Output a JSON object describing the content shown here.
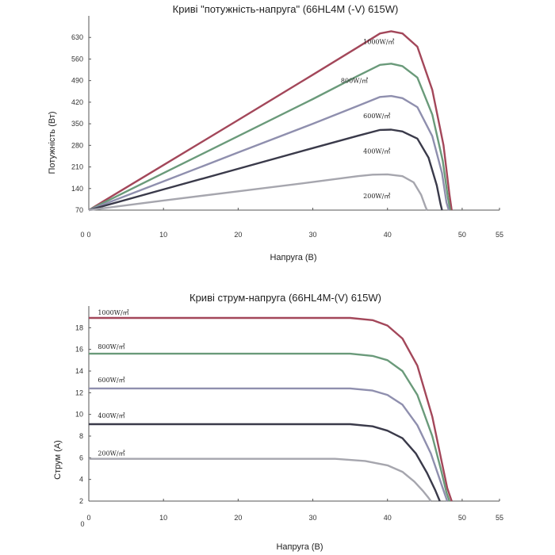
{
  "charts": [
    {
      "type": "line",
      "title": "Криві \"потужність-напруга\" (66HL4M (-V) 615W)",
      "xlabel": "Напруга (В)",
      "ylabel": "Потужність (Вт)",
      "x_origin_label": "0",
      "xticks": [
        "0",
        "10",
        "20",
        "30",
        "40",
        "50",
        "55"
      ],
      "xtick_values": [
        0,
        10,
        20,
        30,
        40,
        50,
        55
      ],
      "yticks": [
        "70",
        "140",
        "210",
        "280",
        "350",
        "420",
        "490",
        "560",
        "630"
      ],
      "ytick_values": [
        70,
        140,
        210,
        280,
        350,
        420,
        490,
        560,
        630
      ],
      "xlim": [
        0,
        55
      ],
      "ylim": [
        70,
        700
      ],
      "grid": false,
      "series": [
        {
          "name": "1000W/㎡",
          "color": "#a3475a",
          "points": [
            [
              0,
              70
            ],
            [
              10,
              216
            ],
            [
              20,
              362
            ],
            [
              30,
              509
            ],
            [
              36,
              598
            ],
            [
              39,
              643
            ],
            [
              40.5,
              650
            ],
            [
              42,
              643
            ],
            [
              44,
              600
            ],
            [
              46,
              460
            ],
            [
              47.5,
              280
            ],
            [
              48.3,
              120
            ],
            [
              48.6,
              70
            ]
          ]
        },
        {
          "name": "800W/㎡",
          "color": "#6a9a7a",
          "points": [
            [
              0,
              70
            ],
            [
              10,
              190
            ],
            [
              20,
              310
            ],
            [
              30,
              430
            ],
            [
              36,
              505
            ],
            [
              39,
              541
            ],
            [
              40.5,
              545
            ],
            [
              42,
              537
            ],
            [
              44,
              500
            ],
            [
              46,
              380
            ],
            [
              47.4,
              230
            ],
            [
              48.1,
              110
            ],
            [
              48.4,
              70
            ]
          ]
        },
        {
          "name": "600W/㎡",
          "color": "#8f8fae",
          "points": [
            [
              0,
              70
            ],
            [
              10,
              163
            ],
            [
              20,
              257
            ],
            [
              30,
              350
            ],
            [
              36,
              408
            ],
            [
              39,
              437
            ],
            [
              40.5,
              440
            ],
            [
              42,
              433
            ],
            [
              44,
              404
            ],
            [
              46,
              310
            ],
            [
              47.3,
              190
            ],
            [
              47.9,
              95
            ],
            [
              48.2,
              70
            ]
          ]
        },
        {
          "name": "400W/㎡",
          "color": "#3a3a4a",
          "points": [
            [
              0,
              70
            ],
            [
              10,
              137
            ],
            [
              20,
              204
            ],
            [
              30,
              271
            ],
            [
              36,
              311
            ],
            [
              39,
              330
            ],
            [
              40.5,
              331
            ],
            [
              42,
              325
            ],
            [
              44,
              302
            ],
            [
              45.5,
              240
            ],
            [
              46.6,
              150
            ],
            [
              47.1,
              90
            ],
            [
              47.3,
              70
            ]
          ]
        },
        {
          "name": "200W/㎡",
          "color": "#a6a6ae",
          "points": [
            [
              0,
              70
            ],
            [
              10,
              101
            ],
            [
              20,
              131
            ],
            [
              30,
              161
            ],
            [
              36,
              180
            ],
            [
              38,
              185
            ],
            [
              40,
              186
            ],
            [
              42,
              180
            ],
            [
              43.5,
              160
            ],
            [
              44.5,
              120
            ],
            [
              45.1,
              80
            ],
            [
              45.3,
              70
            ]
          ]
        }
      ]
    },
    {
      "type": "line",
      "title": "Криві струм-напруга (66HL4M-(V) 615W)",
      "xlabel": "Напруга (В)",
      "ylabel": "Струм (А)",
      "x_origin_label": "0",
      "xticks": [
        "0",
        "10",
        "20",
        "30",
        "40",
        "50",
        "55"
      ],
      "xtick_values": [
        0,
        10,
        20,
        30,
        40,
        50,
        55
      ],
      "yticks": [
        "2",
        "4",
        "6",
        "8",
        "10",
        "12",
        "14",
        "16",
        "18"
      ],
      "ytick_values": [
        2,
        4,
        6,
        8,
        10,
        12,
        14,
        16,
        18
      ],
      "xlim": [
        0,
        55
      ],
      "ylim": [
        2,
        20
      ],
      "grid": false,
      "series": [
        {
          "name": "1000W/㎡",
          "color": "#a3475a",
          "points": [
            [
              0,
              18.9
            ],
            [
              35,
              18.9
            ],
            [
              38,
              18.7
            ],
            [
              40,
              18.2
            ],
            [
              42,
              17.0
            ],
            [
              44,
              14.5
            ],
            [
              46,
              9.8
            ],
            [
              47.3,
              5.5
            ],
            [
              48,
              3.2
            ],
            [
              48.6,
              2
            ]
          ]
        },
        {
          "name": "800W/㎡",
          "color": "#6a9a7a",
          "points": [
            [
              0,
              15.6
            ],
            [
              35,
              15.6
            ],
            [
              38,
              15.4
            ],
            [
              40,
              15.0
            ],
            [
              42,
              14.0
            ],
            [
              44,
              11.8
            ],
            [
              46,
              8.0
            ],
            [
              47.2,
              4.8
            ],
            [
              47.9,
              2.8
            ],
            [
              48.3,
              2
            ]
          ]
        },
        {
          "name": "600W/㎡",
          "color": "#8f8fae",
          "points": [
            [
              0,
              12.4
            ],
            [
              35,
              12.4
            ],
            [
              38,
              12.2
            ],
            [
              40,
              11.8
            ],
            [
              42,
              10.9
            ],
            [
              44,
              9.0
            ],
            [
              45.8,
              6.4
            ],
            [
              47,
              4.0
            ],
            [
              47.7,
              2.6
            ],
            [
              48,
              2
            ]
          ]
        },
        {
          "name": "400W/㎡",
          "color": "#3a3a4a",
          "points": [
            [
              0,
              9.1
            ],
            [
              35,
              9.1
            ],
            [
              38,
              8.9
            ],
            [
              40,
              8.5
            ],
            [
              42,
              7.8
            ],
            [
              43.8,
              6.4
            ],
            [
              45.3,
              4.6
            ],
            [
              46.4,
              3.0
            ],
            [
              47,
              2
            ]
          ]
        },
        {
          "name": "200W/㎡",
          "color": "#a6a6ae",
          "points": [
            [
              0,
              5.9
            ],
            [
              33,
              5.9
            ],
            [
              37,
              5.7
            ],
            [
              40,
              5.3
            ],
            [
              42,
              4.7
            ],
            [
              43.6,
              3.8
            ],
            [
              44.8,
              2.9
            ],
            [
              45.5,
              2.3
            ],
            [
              45.8,
              2
            ]
          ]
        }
      ]
    }
  ]
}
